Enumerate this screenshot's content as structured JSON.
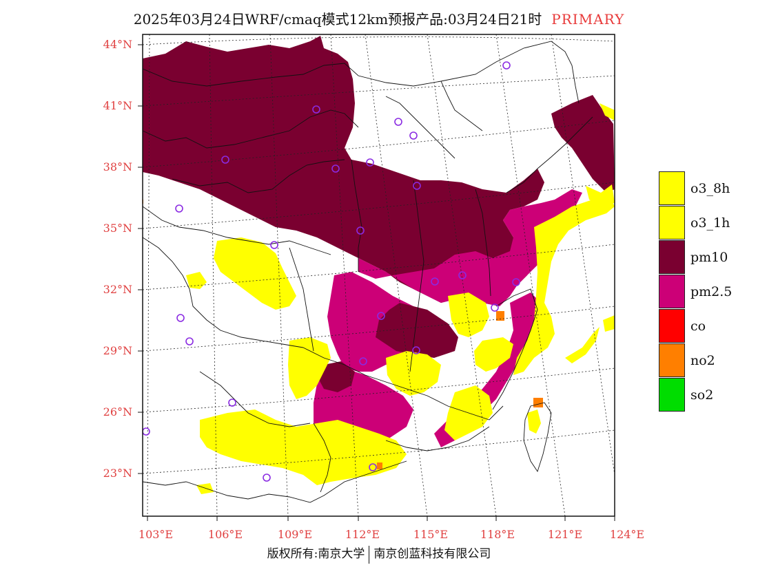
{
  "header": {
    "title": "2025年03月24日WRF/cmaq模式12km预报产品:03月24日21时",
    "tag": "PRIMARY"
  },
  "axes": {
    "lat_labels": [
      "44°N",
      "41°N",
      "38°N",
      "35°N",
      "32°N",
      "29°N",
      "26°N",
      "23°N"
    ],
    "lon_labels": [
      "103°E",
      "106°E",
      "109°E",
      "112°E",
      "115°E",
      "118°E",
      "121°E",
      "124°E"
    ]
  },
  "legend": {
    "items": [
      {
        "label": "o3_8h",
        "color": "#ffff00"
      },
      {
        "label": "o3_1h",
        "color": "#ffff00"
      },
      {
        "label": "pm10",
        "color": "#7a0030"
      },
      {
        "label": "pm2.5",
        "color": "#cc0077"
      },
      {
        "label": "co",
        "color": "#ff0000"
      },
      {
        "label": "no2",
        "color": "#ff7f00"
      },
      {
        "label": "so2",
        "color": "#00dd00"
      }
    ]
  },
  "footer": {
    "left": "版权所有:南京大学",
    "right": "南京创蓝科技有限公司"
  }
}
